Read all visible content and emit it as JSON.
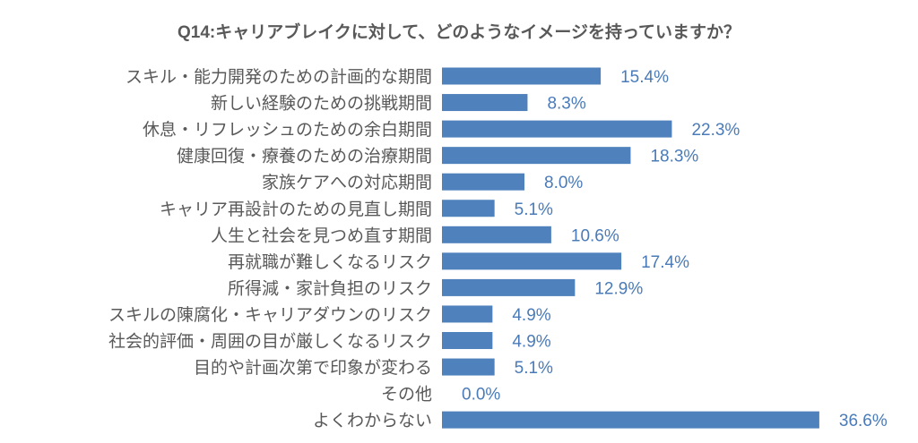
{
  "chart_data": {
    "type": "bar",
    "orientation": "horizontal",
    "title": "Q14:キャリアブレイクに対して、どのようなイメージを持っていますか？",
    "xlabel": "",
    "ylabel": "",
    "xlim": [
      0,
      40
    ],
    "grid": false,
    "legend": "none",
    "bar_color": "#4f81bd",
    "label_color": "#4a7bb8",
    "categories": [
      "スキル・能力開発のための計画的な期間",
      "新しい経験のための挑戦期間",
      "休息・リフレッシュのための余白期間",
      "健康回復・療養のための治療期間",
      "家族ケアへの対応期間",
      "キャリア再設計のための見直し期間",
      "人生と社会を見つめ直す期間",
      "再就職が難しくなるリスク",
      "所得減・家計負担のリスク",
      "スキルの陳腐化・キャリアダウンのリスク",
      "社会的評価・周囲の目が厳しくなるリスク",
      "目的や計画次第で印象が変わる",
      "その他",
      "よくわからない"
    ],
    "values": [
      15.4,
      8.3,
      22.3,
      18.3,
      8.0,
      5.1,
      10.6,
      17.4,
      12.9,
      4.9,
      4.9,
      5.1,
      0.0,
      36.6
    ],
    "value_labels": [
      "15.4%",
      "8.3%",
      "22.3%",
      "18.3%",
      "8.0%",
      "5.1%",
      "10.6%",
      "17.4%",
      "12.9%",
      "4.9%",
      "4.9%",
      "5.1%",
      "0.0%",
      "36.6%"
    ]
  }
}
